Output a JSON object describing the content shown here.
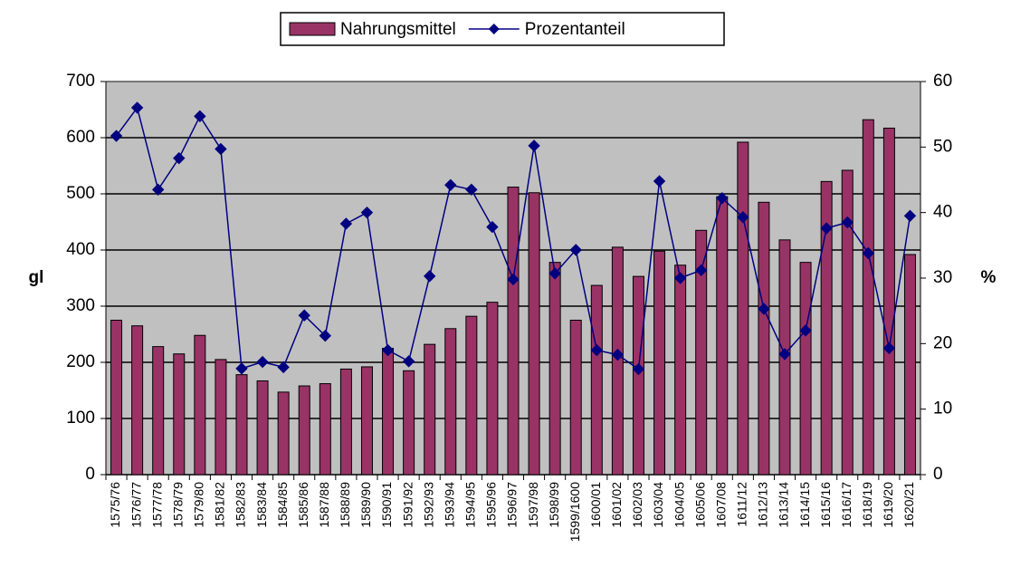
{
  "chart_data": {
    "type": "bar",
    "categories": [
      "1575/76",
      "1576/77",
      "1577/78",
      "1578/79",
      "1579/80",
      "1581/82",
      "1582/83",
      "1583/84",
      "1584/85",
      "1585/86",
      "1587/88",
      "1588/89",
      "1589/90",
      "1590/91",
      "1591/92",
      "1592/93",
      "1593/94",
      "1594/95",
      "1595/96",
      "1596/97",
      "1597/98",
      "1598/99",
      "1599/1600",
      "1600/01",
      "1601/02",
      "1602/03",
      "1603/04",
      "1604/05",
      "1605/06",
      "1607/08",
      "1611/12",
      "1612/13",
      "1613/14",
      "1614/15",
      "1615/16",
      "1616/17",
      "1618/19",
      "1619/20",
      "1620/21"
    ],
    "series": [
      {
        "name": "Nahrungsmittel",
        "color": "#993366",
        "type": "bar",
        "values": [
          275,
          265,
          228,
          215,
          248,
          205,
          178,
          167,
          147,
          158,
          162,
          188,
          192,
          225,
          185,
          232,
          260,
          282,
          307,
          512,
          502,
          378,
          275,
          337,
          405,
          353,
          398,
          373,
          435,
          495,
          592,
          485,
          418,
          378,
          522,
          542,
          632,
          617,
          392
        ]
      },
      {
        "name": "Prozentanteil",
        "color": "#000080",
        "type": "line",
        "axis": "y2",
        "values": [
          51.7,
          56,
          43.5,
          48.3,
          54.7,
          49.7,
          16.2,
          17.2,
          16.4,
          24.3,
          21.2,
          38.3,
          40,
          19,
          17.3,
          30.3,
          44.2,
          43.5,
          37.8,
          29.8,
          50.2,
          30.7,
          34.3,
          19,
          18.3,
          16.1,
          44.8,
          30,
          31.2,
          42.2,
          39.3,
          25.3,
          18.4,
          22,
          37.6,
          38.5,
          33.8,
          19.3,
          39.5
        ]
      }
    ],
    "ylabel": "gl",
    "y2label": "%",
    "ylim": [
      0,
      700
    ],
    "yticks": [
      0,
      100,
      200,
      300,
      400,
      500,
      600,
      700
    ],
    "y2lim": [
      0,
      60
    ],
    "y2ticks": [
      0,
      10,
      20,
      30,
      40,
      50,
      60
    ],
    "grid": true,
    "legend": "top",
    "background": "#c0c0c0"
  }
}
